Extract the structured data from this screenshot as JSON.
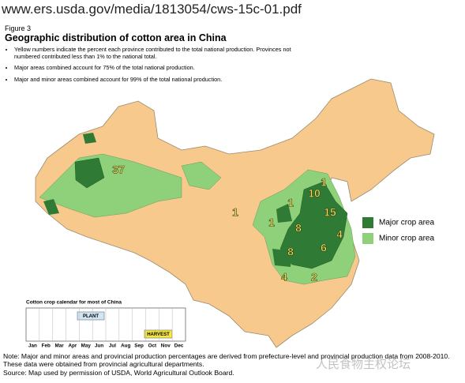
{
  "url": "www.ers.usda.gov/media/1813054/cws-15c-01.pdf",
  "figure_label": "Figure 3",
  "title": "Geographic distribution of cotton area in China",
  "bullets": [
    "Yellow numbers indicate the percent each province contributed to the total national production. Provinces not numbered contributed less than 1% to the national total.",
    "Major areas combined account for 75% of the total national production.",
    "Major and minor areas combined account for 99% of the total national production."
  ],
  "legend": [
    "Major crop area",
    "Minor crop area"
  ],
  "province_labels": [
    37,
    1,
    1,
    1,
    10,
    1,
    15,
    8,
    4,
    8,
    6,
    4,
    2
  ],
  "calendar": {
    "title": "Cotton crop calendar for most of China",
    "months": [
      "Jan",
      "Feb",
      "Mar",
      "Apr",
      "May",
      "Jun",
      "Jul",
      "Aug",
      "Sep",
      "Oct",
      "Nov",
      "Dec"
    ],
    "plant": "PLANT",
    "harvest": "HARVEST"
  },
  "note": "Note: Major and minor areas and provincial production percentages are derived from prefecture-level and provincial production data from 2008-2010. These data were obtained from provincial agricultural departments.",
  "source": "Source: Map used by permission of USDA, World Agricultural Outlook Board.",
  "watermark": "人民食物主权论坛"
}
